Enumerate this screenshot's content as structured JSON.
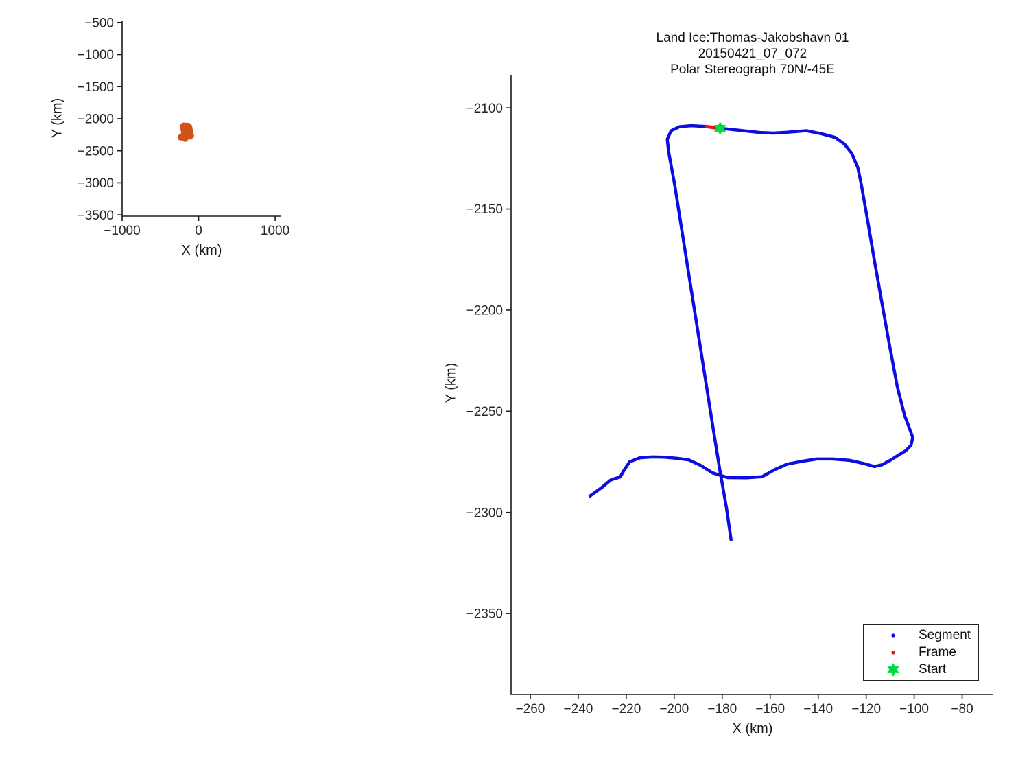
{
  "figure_title": {
    "line1": "Land Ice:Thomas-Jakobshavn 01",
    "line2": "20150421_07_072",
    "line3": "Polar Stereograph 70N/-45E"
  },
  "legend": {
    "position": "bottom-right",
    "items": [
      {
        "label": "Segment",
        "marker": "dot",
        "color": "#0d0de1"
      },
      {
        "label": "Frame",
        "marker": "dot",
        "color": "#ea1212"
      },
      {
        "label": "Start",
        "marker": "hexagram",
        "color": "#00d93c"
      }
    ]
  },
  "chart_data": {
    "type": "line",
    "title": [
      "Land Ice:Thomas-Jakobshavn 01",
      "20150421_07_072",
      "Polar Stereograph 70N/-45E"
    ],
    "main_axes": {
      "xlabel": "X (km)",
      "ylabel": "Y (km)",
      "xlim": [
        -268,
        -67
      ],
      "ylim": [
        -2390,
        -2084
      ],
      "xticks": [
        -260,
        -240,
        -220,
        -200,
        -180,
        -160,
        -140,
        -120,
        -100,
        -80
      ],
      "yticks": [
        -2100,
        -2150,
        -2200,
        -2250,
        -2300,
        -2350
      ],
      "grid": false,
      "box": false,
      "tick_direction": "out"
    },
    "overview_axes": {
      "xlabel": "X (km)",
      "ylabel": "Y (km)",
      "xlim": [
        -1000,
        1080
      ],
      "ylim": [
        -3520,
        -470
      ],
      "xticks": [
        -1000,
        0,
        1000
      ],
      "yticks": [
        -500,
        -1000,
        -1500,
        -2000,
        -2500,
        -3000,
        -3500
      ],
      "grid": false,
      "box": false,
      "track_color": "#d2521c",
      "track_width": 9
    },
    "series": [
      {
        "name": "Segment",
        "color": "#0d0de1",
        "line_width": 4.5,
        "points": [
          [
            -176.3,
            -2313.5
          ],
          [
            -178.2,
            -2298.0
          ],
          [
            -181.0,
            -2279.0
          ],
          [
            -184.5,
            -2253.0
          ],
          [
            -188.5,
            -2223.0
          ],
          [
            -192.5,
            -2193.0
          ],
          [
            -196.5,
            -2163.0
          ],
          [
            -199.8,
            -2138.0
          ],
          [
            -202.3,
            -2122.0
          ],
          [
            -202.9,
            -2115.5
          ],
          [
            -201.3,
            -2111.3
          ],
          [
            -197.8,
            -2109.3
          ],
          [
            -193.0,
            -2108.8
          ],
          [
            -186.7,
            -2109.2
          ],
          [
            -182.9,
            -2109.8
          ],
          [
            -180.9,
            -2110.1
          ],
          [
            -172.9,
            -2111.1
          ],
          [
            -164.3,
            -2112.2
          ],
          [
            -158.6,
            -2112.5
          ],
          [
            -152.9,
            -2112.1
          ],
          [
            -144.9,
            -2111.3
          ],
          [
            -138.6,
            -2112.8
          ],
          [
            -133.0,
            -2114.6
          ],
          [
            -129.0,
            -2118.0
          ],
          [
            -126.0,
            -2122.5
          ],
          [
            -123.5,
            -2129.5
          ],
          [
            -122.0,
            -2138.0
          ],
          [
            -119.5,
            -2155.0
          ],
          [
            -116.5,
            -2176.0
          ],
          [
            -113.5,
            -2196.0
          ],
          [
            -110.5,
            -2216.0
          ],
          [
            -107.0,
            -2238.0
          ],
          [
            -104.0,
            -2252.0
          ],
          [
            -101.8,
            -2259.0
          ],
          [
            -100.6,
            -2263.0
          ],
          [
            -101.3,
            -2266.8
          ],
          [
            -103.5,
            -2269.5
          ],
          [
            -106.3,
            -2271.5
          ],
          [
            -110.0,
            -2274.3
          ],
          [
            -113.5,
            -2276.5
          ],
          [
            -116.6,
            -2277.3
          ],
          [
            -121.0,
            -2275.8
          ],
          [
            -127.1,
            -2274.2
          ],
          [
            -134.0,
            -2273.6
          ],
          [
            -140.6,
            -2273.6
          ],
          [
            -147.0,
            -2274.8
          ],
          [
            -152.9,
            -2276.1
          ],
          [
            -158.0,
            -2278.8
          ],
          [
            -163.4,
            -2282.4
          ],
          [
            -170.0,
            -2282.9
          ],
          [
            -177.7,
            -2282.8
          ],
          [
            -184.0,
            -2280.5
          ],
          [
            -189.1,
            -2276.7
          ],
          [
            -194.0,
            -2274.0
          ],
          [
            -198.6,
            -2273.3
          ],
          [
            -204.0,
            -2272.7
          ],
          [
            -209.1,
            -2272.6
          ],
          [
            -214.3,
            -2273.0
          ],
          [
            -218.6,
            -2275.0
          ],
          [
            -220.9,
            -2279.1
          ],
          [
            -222.5,
            -2282.5
          ],
          [
            -225.1,
            -2283.4
          ],
          [
            -226.6,
            -2284.1
          ],
          [
            -230.0,
            -2287.5
          ],
          [
            -235.1,
            -2291.9
          ]
        ]
      },
      {
        "name": "Frame",
        "color": "#ea1212",
        "line_width": 5,
        "points": [
          [
            -186.7,
            -2109.2
          ],
          [
            -182.9,
            -2109.8
          ]
        ]
      },
      {
        "name": "Start",
        "color": "#00d93c",
        "marker": "hexagram",
        "marker_size": 10,
        "points": [
          [
            -180.9,
            -2110.1
          ]
        ]
      }
    ]
  }
}
